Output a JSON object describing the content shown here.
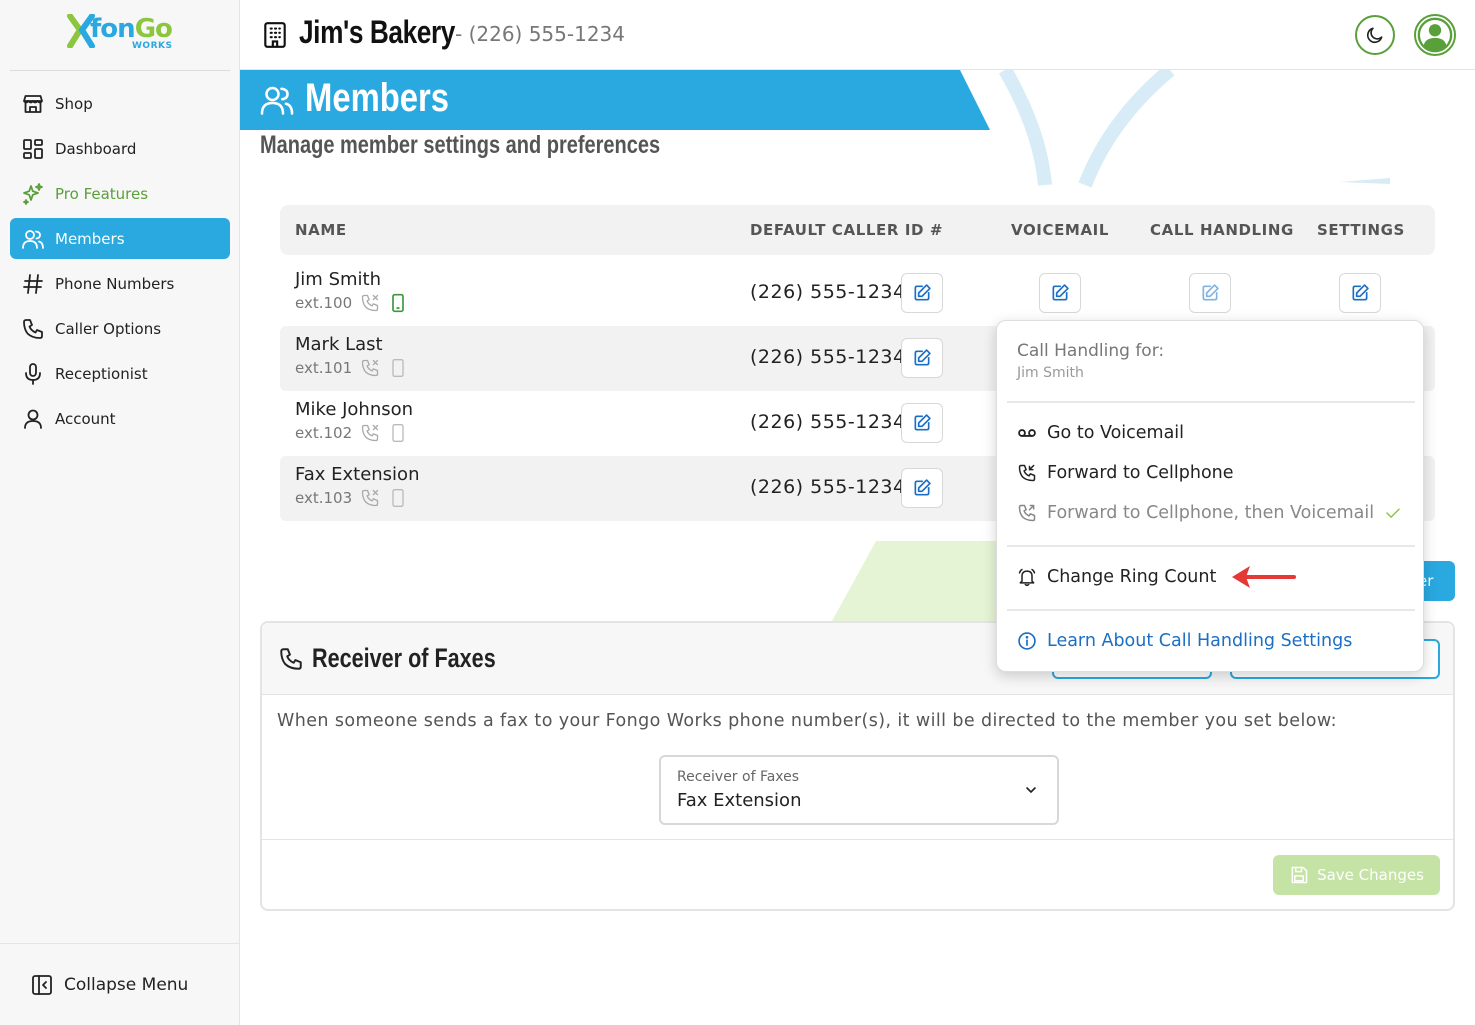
{
  "brand": {
    "logo_main": "fon",
    "logo_go": "Go",
    "logo_sub": "WORKS"
  },
  "sidebar": {
    "items": [
      {
        "label": "Shop",
        "icon": "store-icon"
      },
      {
        "label": "Dashboard",
        "icon": "dashboard-icon"
      },
      {
        "label": "Pro Features",
        "icon": "sparkles-icon"
      },
      {
        "label": "Members",
        "icon": "users-icon"
      },
      {
        "label": "Phone Numbers",
        "icon": "hash-icon"
      },
      {
        "label": "Caller Options",
        "icon": "phone-icon"
      },
      {
        "label": "Receptionist",
        "icon": "microphone-icon"
      },
      {
        "label": "Account",
        "icon": "user-icon"
      }
    ],
    "active": "Members",
    "collapse_label": "Collapse Menu"
  },
  "header": {
    "business_name": "Jim's Bakery",
    "business_phone": "- (226) 555-1234"
  },
  "page": {
    "title": "Members",
    "subtitle": "Manage member settings and preferences"
  },
  "table": {
    "columns": {
      "name": "NAME",
      "caller_id": "DEFAULT CALLER ID #",
      "voicemail": "VOICEMAIL",
      "call_handling": "CALL HANDLING",
      "settings": "SETTINGS"
    },
    "rows": [
      {
        "name": "Jim Smith",
        "ext": "ext.100",
        "caller_id": "(226) 555-1234",
        "cellphone_active": true
      },
      {
        "name": "Mark Last",
        "ext": "ext.101",
        "caller_id": "(226) 555-1234",
        "cellphone_active": false
      },
      {
        "name": "Mike Johnson",
        "ext": "ext.102",
        "caller_id": "(226) 555-1234",
        "cellphone_active": false
      },
      {
        "name": "Fax Extension",
        "ext": "ext.103",
        "caller_id": "(226) 555-1234",
        "cellphone_active": false
      }
    ]
  },
  "add_button_partial": "er",
  "fax": {
    "title": "Receiver of Faxes",
    "description": "When someone sends a fax to your Fongo Works phone number(s), it will be directed to the member you set below:",
    "select_label": "Receiver of Faxes",
    "select_value": "Fax Extension",
    "save_label": "Save Changes"
  },
  "call_handling_menu": {
    "title": "Call Handling for:",
    "member": "Jim Smith",
    "options": [
      {
        "label": "Go to Voicemail",
        "icon": "voicemail-icon"
      },
      {
        "label": "Forward to Cellphone",
        "icon": "phone-forward-icon"
      },
      {
        "label": "Forward to Cellphone, then Voicemail",
        "icon": "phone-forward-voicemail-icon",
        "selected": true
      }
    ],
    "ring_count_label": "Change Ring Count",
    "learn_label": "Learn About Call Handling Settings"
  },
  "colors": {
    "primary": "#29a9e0",
    "accent_green": "#5aa03a",
    "annotation_arrow": "#e53935"
  }
}
